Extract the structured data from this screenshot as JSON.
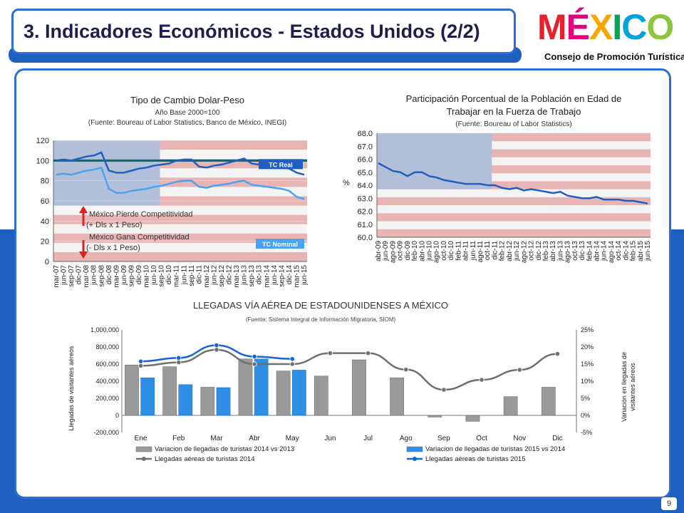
{
  "page": {
    "title": "3. Indicadores Económicos - Estados Unidos (2/2)",
    "logo_text": "MÉXICO",
    "logo_letters": [
      {
        "ch": "M",
        "color": "#e8202a"
      },
      {
        "ch": "É",
        "color": "#e6007e"
      },
      {
        "ch": "X",
        "color": "#f7a600"
      },
      {
        "ch": "I",
        "color": "#00a651"
      },
      {
        "ch": "C",
        "color": "#00a3e0"
      },
      {
        "ch": "O",
        "color": "#8cc63f"
      }
    ],
    "logo_subtitle": "Consejo de Promoción Turística",
    "page_number": "9"
  },
  "chart_data": [
    {
      "type": "line",
      "title": "Tipo de Cambio Dolar-Peso",
      "subtitle": "Año Base 2000=100",
      "source": "(Fuente: Boureau of Labor Statistics, Banco de México, INEGI)",
      "ylim": [
        0,
        120
      ],
      "yticks": [
        "0",
        "20",
        "40",
        "60",
        "80",
        "100",
        "120"
      ],
      "x_labels": [
        "mar-07",
        "jun-07",
        "sep-07",
        "dic-07",
        "mar-08",
        "jun-08",
        "sep-08",
        "dic-08",
        "mar-09",
        "jun-09",
        "sep-09",
        "dic-09",
        "mar-10",
        "jun-10",
        "sep-10",
        "dic-10",
        "mar-11",
        "jun-11",
        "sep-11",
        "dic-11",
        "mar-12",
        "jun-12",
        "sep-12",
        "dic-12",
        "mar-13",
        "jun-13",
        "sep-13",
        "dic-13",
        "mar-14",
        "jun-14",
        "sep-14",
        "dic-14",
        "mar-15",
        "jun-15"
      ],
      "reference_value": 100,
      "series": [
        {
          "name": "TC Real",
          "color": "#1f5fbf",
          "values": [
            100,
            101,
            100,
            102,
            104,
            105,
            108,
            90,
            88,
            88,
            90,
            92,
            93,
            95,
            96,
            97,
            100,
            101,
            101,
            94,
            93,
            95,
            96,
            98,
            100,
            102,
            97,
            96,
            95,
            94,
            93,
            92,
            88,
            86
          ]
        },
        {
          "name": "TC Nominal",
          "color": "#4aa3f0",
          "values": [
            86,
            87,
            86,
            88,
            90,
            91,
            93,
            72,
            68,
            68,
            70,
            71,
            72,
            74,
            75,
            77,
            79,
            80,
            80,
            74,
            73,
            75,
            76,
            77,
            79,
            80,
            76,
            75,
            74,
            73,
            72,
            70,
            64,
            62
          ]
        }
      ],
      "annotations": [
        {
          "text": "México Pierde Competitividad",
          "direction": "up",
          "color": "#e02020"
        },
        {
          "text": "(+ Dls x 1 Peso)"
        },
        {
          "text": "México Gana Competitividad",
          "direction": "down",
          "color": "#e02020"
        },
        {
          "text": "(- Dls x 1 Peso)"
        }
      ]
    },
    {
      "type": "line",
      "title_lines": [
        "Participación Porcentual de la Población en Edad de",
        "Trabajar en la Fuerza de Trabajo"
      ],
      "source": "(Fuente: Boureau of Labor Statistics)",
      "ylabel": "%",
      "ylim": [
        60,
        68
      ],
      "yticks": [
        "60.0",
        "61.0",
        "62.0",
        "63.0",
        "64.0",
        "65.0",
        "66.0",
        "67.0",
        "68.0"
      ],
      "x_labels": [
        "abr-09",
        "jun-09",
        "ago-09",
        "oct-09",
        "dic-09",
        "feb-10",
        "abr-10",
        "jun-10",
        "ago-10",
        "oct-10",
        "dic-10",
        "feb-11",
        "abr-11",
        "jun-11",
        "ago-11",
        "oct-11",
        "dic-11",
        "feb-12",
        "abr-12",
        "jun-12",
        "ago-12",
        "oct-12",
        "dic-12",
        "feb-13",
        "abr-13",
        "jun-13",
        "ago-13",
        "oct-13",
        "dic-13",
        "feb-14",
        "abr-14",
        "jun-14",
        "ago-14",
        "oct-14",
        "dic-14",
        "feb-15",
        "abr-15",
        "jun-15"
      ],
      "series": [
        {
          "name": "",
          "color": "#1f5fbf",
          "values": [
            65.7,
            65.4,
            65.1,
            65.0,
            64.7,
            65.0,
            65.0,
            64.7,
            64.6,
            64.4,
            64.3,
            64.2,
            64.1,
            64.1,
            64.1,
            64.0,
            64.0,
            63.8,
            63.7,
            63.8,
            63.6,
            63.7,
            63.6,
            63.5,
            63.4,
            63.5,
            63.2,
            63.1,
            63.0,
            63.0,
            63.1,
            62.9,
            62.9,
            62.9,
            62.8,
            62.8,
            62.7,
            62.6
          ]
        }
      ]
    },
    {
      "type": "bar",
      "title": "LLEGADAS VÍA AÉREA DE ESTADOUNIDENSES A MÉXICO",
      "source": "(Fuente: Sistema Integral de Información Migratoria, SIOM)",
      "ylabel": "Llegadas de visitantes aéreos",
      "y2label_lines": [
        "Variación en llegadas de",
        "visitantes aéreos"
      ],
      "categories": [
        "Ene",
        "Feb",
        "Mar",
        "Abr",
        "May",
        "Jun",
        "Jul",
        "Ago",
        "Sep",
        "Oct",
        "Nov",
        "Dic"
      ],
      "ylim": [
        -200000,
        1000000
      ],
      "yticks": [
        "-200,000",
        "0",
        "200,000",
        "400,000",
        "600,000",
        "800,000",
        "1,000,000"
      ],
      "y2lim": [
        -5,
        25
      ],
      "y2ticks": [
        "-5%",
        "0%",
        "5%",
        "10%",
        "15%",
        "20%",
        "25%"
      ],
      "bar_series": [
        {
          "name": "Variacion de llegadas de turistas 2014 vs 2013",
          "color": "#9a9a9a",
          "values": [
            590000,
            570000,
            330000,
            660000,
            520000,
            460000,
            650000,
            440000,
            -20000,
            -70000,
            220000,
            330000
          ]
        },
        {
          "name": "Variacion de llegadas de turistas 2015 vs 2014",
          "color": "#2f8fe6",
          "values": [
            440000,
            360000,
            325000,
            660000,
            530000,
            null,
            null,
            null,
            null,
            null,
            null,
            null
          ]
        }
      ],
      "line_series": [
        {
          "name": "Llegadas aéreas de turistas 2014",
          "color": "#707070",
          "values": [
            14.5,
            15.5,
            19.2,
            15,
            15,
            18.2,
            18.2,
            13.4,
            7.5,
            10.4,
            13.3,
            18
          ]
        },
        {
          "name": "Llegadas aéreas de turistas 2015",
          "color": "#1565d8",
          "values": [
            15.8,
            16.8,
            20.5,
            17.2,
            16.5,
            null,
            null,
            null,
            null,
            null,
            null,
            null
          ]
        }
      ],
      "legend_position": "bottom"
    }
  ]
}
